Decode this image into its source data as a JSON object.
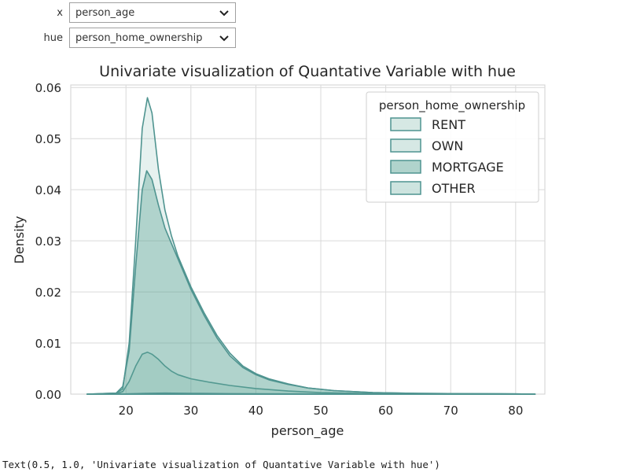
{
  "widgets": {
    "x": {
      "label": "x",
      "value": "person_age"
    },
    "hue": {
      "label": "hue",
      "value": "person_home_ownership"
    }
  },
  "output_text": "Text(0.5, 1.0, 'Univariate visualization of Quantative Variable with hue')",
  "colors": {
    "line": "#4f9490",
    "fill": "#5aa494",
    "grid": "#d9d9d9",
    "axis_text": "#262626"
  },
  "chart_data": {
    "type": "area",
    "title": "Univariate visualization of Quantative Variable with hue",
    "xlabel": "person_age",
    "ylabel": "Density",
    "xlim": [
      11.5,
      84.5
    ],
    "ylim": [
      0,
      0.0605
    ],
    "xticks": [
      20,
      30,
      40,
      50,
      60,
      70,
      80
    ],
    "yticks": [
      0.0,
      0.01,
      0.02,
      0.03,
      0.04,
      0.05,
      0.06
    ],
    "grid": true,
    "legend": {
      "title": "person_home_ownership",
      "position": "top-right",
      "entries": [
        "RENT",
        "OWN",
        "MORTGAGE",
        "OTHER"
      ]
    },
    "series": [
      {
        "name": "RENT",
        "fill_opacity": 0.15,
        "points": [
          [
            14,
            0
          ],
          [
            18.5,
            0.0002
          ],
          [
            19.5,
            0.001
          ],
          [
            20.5,
            0.01
          ],
          [
            21.5,
            0.03
          ],
          [
            22.5,
            0.052
          ],
          [
            23.3,
            0.058
          ],
          [
            24,
            0.055
          ],
          [
            25,
            0.044
          ],
          [
            26,
            0.036
          ],
          [
            27,
            0.031
          ],
          [
            28,
            0.027
          ],
          [
            30,
            0.021
          ],
          [
            32,
            0.016
          ],
          [
            34,
            0.0115
          ],
          [
            36,
            0.008
          ],
          [
            38,
            0.0055
          ],
          [
            40,
            0.004
          ],
          [
            42,
            0.003
          ],
          [
            45,
            0.002
          ],
          [
            48,
            0.0012
          ],
          [
            52,
            0.0007
          ],
          [
            58,
            0.0003
          ],
          [
            65,
            0.00015
          ],
          [
            72,
            0.0001
          ],
          [
            80,
            5e-05
          ],
          [
            83,
            0
          ]
        ]
      },
      {
        "name": "OWN",
        "fill_opacity": 0.15,
        "points": [
          [
            14,
            0
          ],
          [
            18.5,
            0.0001
          ],
          [
            19.5,
            0.0005
          ],
          [
            20.5,
            0.0025
          ],
          [
            21.5,
            0.0055
          ],
          [
            22.5,
            0.0078
          ],
          [
            23.3,
            0.0082
          ],
          [
            24,
            0.0078
          ],
          [
            25,
            0.0068
          ],
          [
            26,
            0.0055
          ],
          [
            27,
            0.0045
          ],
          [
            28,
            0.0038
          ],
          [
            30,
            0.003
          ],
          [
            33,
            0.0023
          ],
          [
            36,
            0.0017
          ],
          [
            40,
            0.0011
          ],
          [
            45,
            0.0006
          ],
          [
            50,
            0.0003
          ],
          [
            56,
            0.00015
          ],
          [
            65,
            5e-05
          ],
          [
            75,
            2e-05
          ],
          [
            83,
            0
          ]
        ]
      },
      {
        "name": "MORTGAGE",
        "fill_opacity": 0.38,
        "points": [
          [
            14,
            0
          ],
          [
            18.5,
            0.0002
          ],
          [
            19.5,
            0.0015
          ],
          [
            20.5,
            0.0085
          ],
          [
            21.5,
            0.025
          ],
          [
            22.5,
            0.04
          ],
          [
            23.2,
            0.0437
          ],
          [
            24,
            0.042
          ],
          [
            25,
            0.037
          ],
          [
            26,
            0.0325
          ],
          [
            27,
            0.0295
          ],
          [
            28,
            0.0265
          ],
          [
            30,
            0.0205
          ],
          [
            32,
            0.0155
          ],
          [
            34,
            0.011
          ],
          [
            36,
            0.0075
          ],
          [
            38,
            0.0052
          ],
          [
            40,
            0.0038
          ],
          [
            42,
            0.0028
          ],
          [
            45,
            0.0019
          ],
          [
            48,
            0.0012
          ],
          [
            52,
            0.0007
          ],
          [
            58,
            0.0003
          ],
          [
            65,
            0.00015
          ],
          [
            72,
            0.0001
          ],
          [
            80,
            5e-05
          ],
          [
            83,
            0
          ]
        ]
      },
      {
        "name": "OTHER",
        "fill_opacity": 0.2,
        "points": [
          [
            14,
            0
          ],
          [
            20,
            5e-05
          ],
          [
            23,
            0.00015
          ],
          [
            26,
            0.0002
          ],
          [
            30,
            0.00015
          ],
          [
            36,
            0.0001
          ],
          [
            45,
            5e-05
          ],
          [
            55,
            2e-05
          ],
          [
            83,
            0
          ]
        ]
      }
    ]
  }
}
